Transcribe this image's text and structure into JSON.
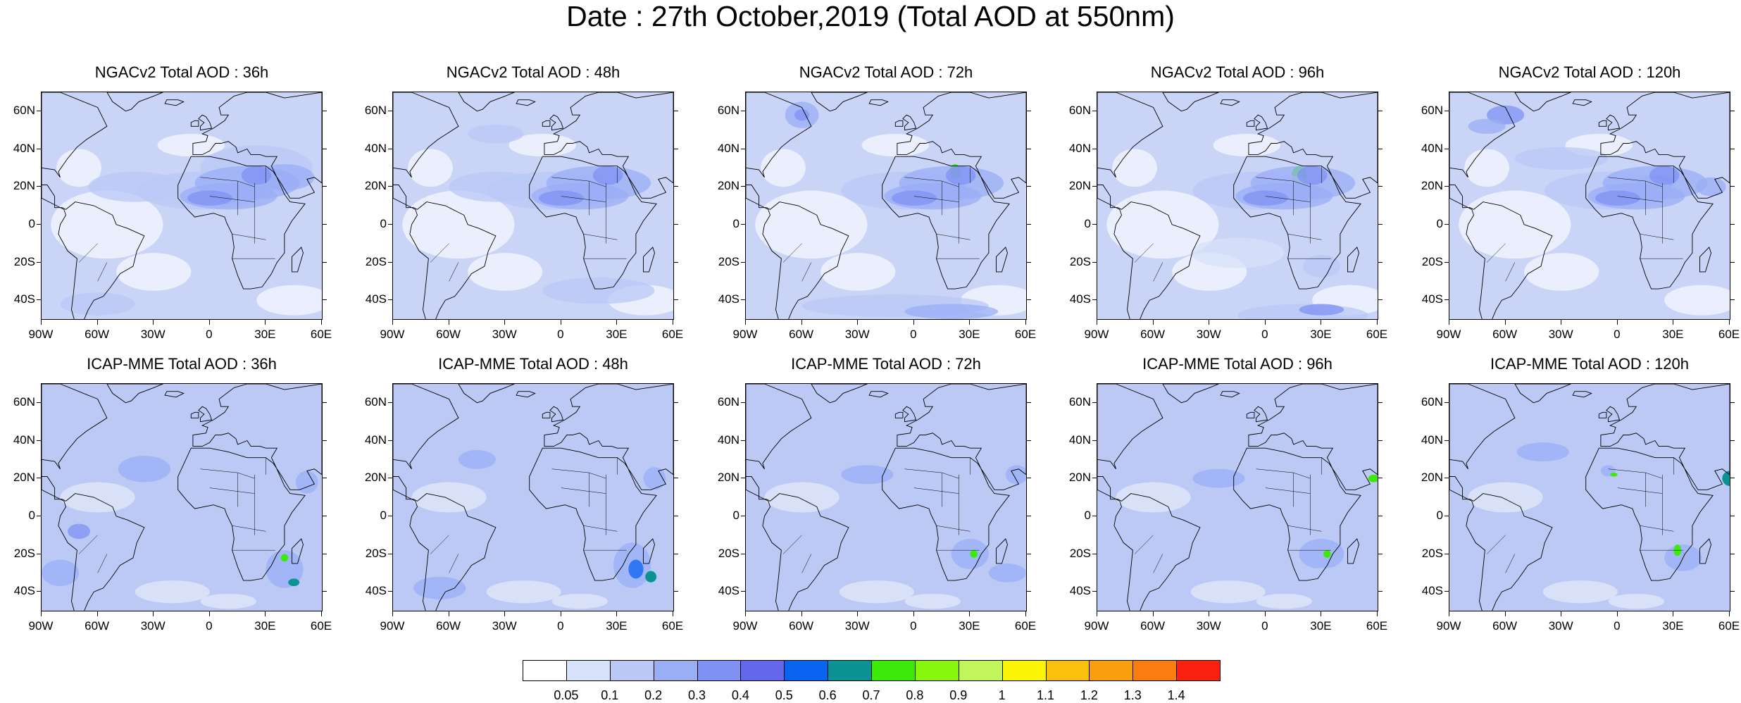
{
  "title": "Date : 27th October,2019 (Total AOD at 550nm)",
  "lat_labels": [
    "60N",
    "40N",
    "20N",
    "0",
    "20S",
    "40S"
  ],
  "lon_labels": [
    "90W",
    "60W",
    "30W",
    "0",
    "30E",
    "60E"
  ],
  "panels": [
    {
      "title": "NGACv2 Total AOD : 36h"
    },
    {
      "title": "NGACv2 Total AOD : 48h"
    },
    {
      "title": "NGACv2 Total AOD : 72h"
    },
    {
      "title": "NGACv2 Total AOD : 96h"
    },
    {
      "title": "NGACv2 Total AOD : 120h"
    },
    {
      "title": "ICAP-MME Total AOD : 36h"
    },
    {
      "title": "ICAP-MME Total AOD : 48h"
    },
    {
      "title": "ICAP-MME Total AOD : 72h"
    },
    {
      "title": "ICAP-MME Total AOD : 96h"
    },
    {
      "title": "ICAP-MME Total AOD : 120h"
    }
  ],
  "colorbar": {
    "colors": [
      "#ffffff",
      "#d8e1fa",
      "#bac8f6",
      "#9aaef6",
      "#7f92f3",
      "#6467ec",
      "#0a64f1",
      "#0b9393",
      "#3cea0a",
      "#88f50d",
      "#c2f55a",
      "#f9f505",
      "#f9c10e",
      "#f99f0d",
      "#f97e0f",
      "#f92010"
    ],
    "labels": [
      "0.05",
      "0.1",
      "0.2",
      "0.3",
      "0.4",
      "0.5",
      "0.6",
      "0.7",
      "0.8",
      "0.9",
      "1",
      "1.1",
      "1.2",
      "1.3",
      "1.4"
    ]
  }
}
